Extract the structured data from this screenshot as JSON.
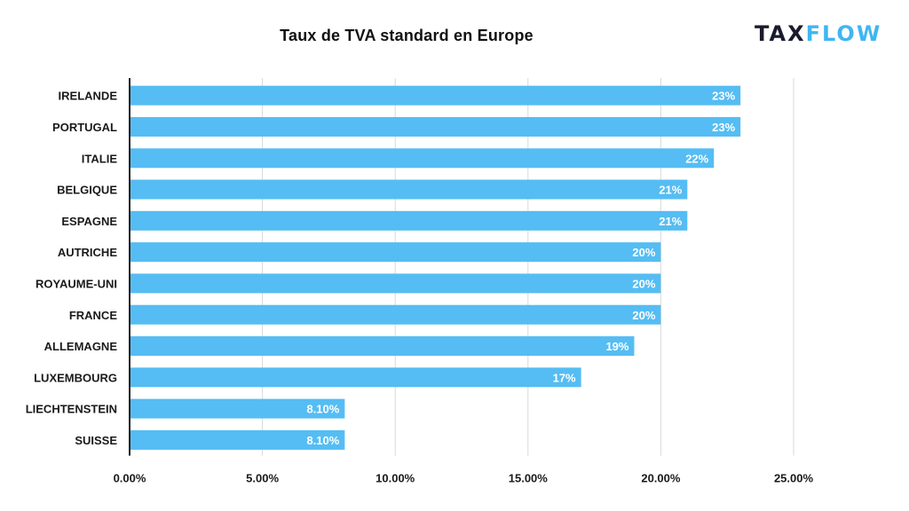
{
  "colors": {
    "bar": "#55bdf3",
    "grid": "#d9d9d9",
    "axis": "#222222",
    "logo_dark": "#1b1b2e",
    "logo_accent": "#3fb6f2"
  },
  "logo": {
    "part1": "TAX",
    "part2": "FLOW"
  },
  "chart_data": {
    "type": "bar",
    "orientation": "horizontal",
    "title": "Taux de TVA standard en Europe",
    "categories": [
      "IRELANDE",
      "PORTUGAL",
      "ITALIE",
      "BELGIQUE",
      "ESPAGNE",
      "AUTRICHE",
      "ROYAUME-UNI",
      "FRANCE",
      "ALLEMAGNE",
      "LUXEMBOURG",
      "LIECHTENSTEIN",
      "SUISSE"
    ],
    "values": [
      23,
      23,
      22,
      21,
      21,
      20,
      20,
      20,
      19,
      17,
      8.1,
      8.1
    ],
    "data_labels": [
      "23%",
      "23%",
      "22%",
      "21%",
      "21%",
      "20%",
      "20%",
      "20%",
      "19%",
      "17%",
      "8.10%",
      "8.10%"
    ],
    "xlim": [
      0,
      25
    ],
    "x_ticks": [
      0,
      5,
      10,
      15,
      20,
      25
    ],
    "x_tick_labels": [
      "0.00%",
      "5.00%",
      "10.00%",
      "15.00%",
      "20.00%",
      "25.00%"
    ],
    "xlabel": "",
    "ylabel": "",
    "grid": true,
    "legend": "none"
  }
}
